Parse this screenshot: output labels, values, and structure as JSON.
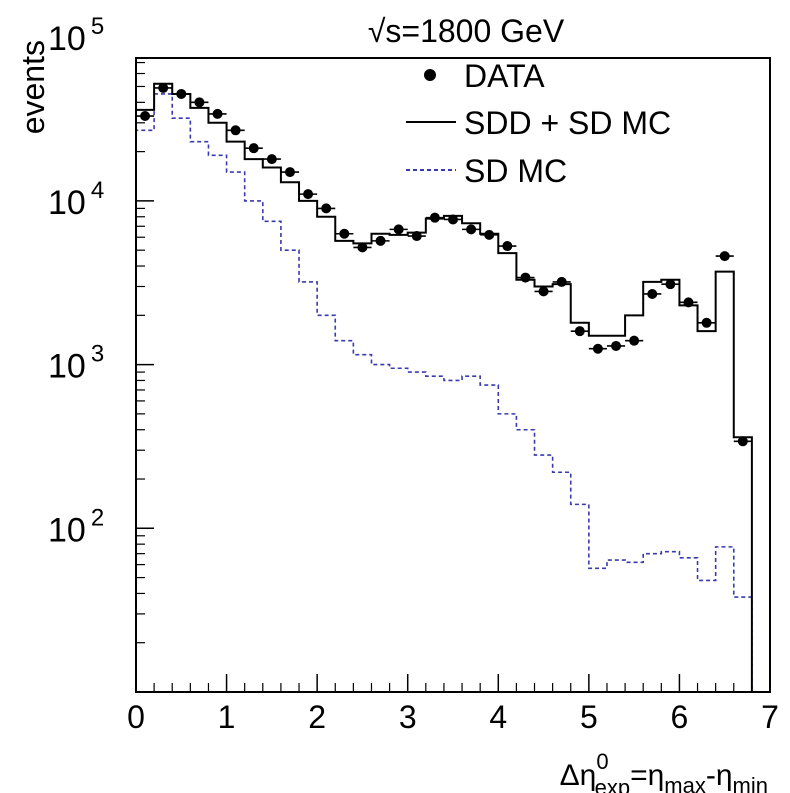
{
  "chart_data": {
    "type": "histogram",
    "title": "√s=1800 GeV",
    "ylabel": "events",
    "xlabel": {
      "prefix": "Δη",
      "sup": "0",
      "sub": "exp",
      "eq": "=η",
      "sub2": "max",
      "minus": "-η",
      "sub3": "min"
    },
    "y_scale": "log",
    "xlim": [
      0,
      7
    ],
    "ylim": [
      10,
      100000
    ],
    "x_ticks": [
      "0",
      "1",
      "2",
      "3",
      "4",
      "5",
      "6",
      "7"
    ],
    "y_ticks": [
      {
        "value": 100,
        "base": "10",
        "exp": "2"
      },
      {
        "value": 1000,
        "base": "10",
        "exp": "3"
      },
      {
        "value": 10000,
        "base": "10",
        "exp": "4"
      },
      {
        "value": 100000,
        "base": "10",
        "exp": "5"
      }
    ],
    "bin_edges": [
      0,
      0.2,
      0.4,
      0.6,
      0.8,
      1.0,
      1.2,
      1.4,
      1.6,
      1.8,
      2.0,
      2.2,
      2.4,
      2.6,
      2.8,
      3.0,
      3.2,
      3.4,
      3.6,
      3.8,
      4.0,
      4.2,
      4.4,
      4.6,
      4.8,
      5.0,
      5.2,
      5.4,
      5.6,
      5.8,
      6.0,
      6.2,
      6.4,
      6.6,
      6.8
    ],
    "series": [
      {
        "name": "DATA",
        "style": "points",
        "color": "#000000",
        "x": [
          0.1,
          0.3,
          0.5,
          0.7,
          0.9,
          1.1,
          1.3,
          1.5,
          1.7,
          1.9,
          2.1,
          2.3,
          2.5,
          2.7,
          2.9,
          3.1,
          3.3,
          3.5,
          3.7,
          3.9,
          4.1,
          4.3,
          4.5,
          4.7,
          4.9,
          5.1,
          5.3,
          5.5,
          5.7,
          5.9,
          6.1,
          6.3,
          6.5,
          6.7
        ],
        "y": [
          33000,
          49000,
          45000,
          40000,
          34000,
          27000,
          21000,
          18000,
          15000,
          11000,
          9000,
          6300,
          5200,
          5700,
          6700,
          6100,
          7900,
          7700,
          6700,
          6200,
          5300,
          3400,
          2800,
          3200,
          1600,
          1250,
          1300,
          1400,
          2700,
          3100,
          2400,
          1800,
          4600,
          340
        ]
      },
      {
        "name": "SDD + SD MC",
        "style": "solid-step",
        "color": "#000000",
        "values": [
          36000,
          52000,
          45000,
          37000,
          30000,
          23000,
          18000,
          16000,
          13000,
          10000,
          8000,
          5700,
          5500,
          6300,
          6200,
          6400,
          7800,
          8100,
          7300,
          6300,
          4800,
          3300,
          3000,
          3100,
          1800,
          1500,
          1500,
          2000,
          3200,
          3300,
          2300,
          1600,
          3700,
          360
        ]
      },
      {
        "name": "SD MC",
        "style": "dashed-step",
        "color": "#3a3ab0",
        "values": [
          27000,
          45000,
          32000,
          23000,
          19000,
          15000,
          10000,
          7500,
          5000,
          3200,
          2000,
          1400,
          1150,
          1000,
          950,
          900,
          850,
          800,
          850,
          750,
          500,
          400,
          280,
          220,
          140,
          57,
          64,
          62,
          70,
          72,
          66,
          48,
          77,
          38
        ]
      }
    ],
    "legend_position": "top-right"
  }
}
